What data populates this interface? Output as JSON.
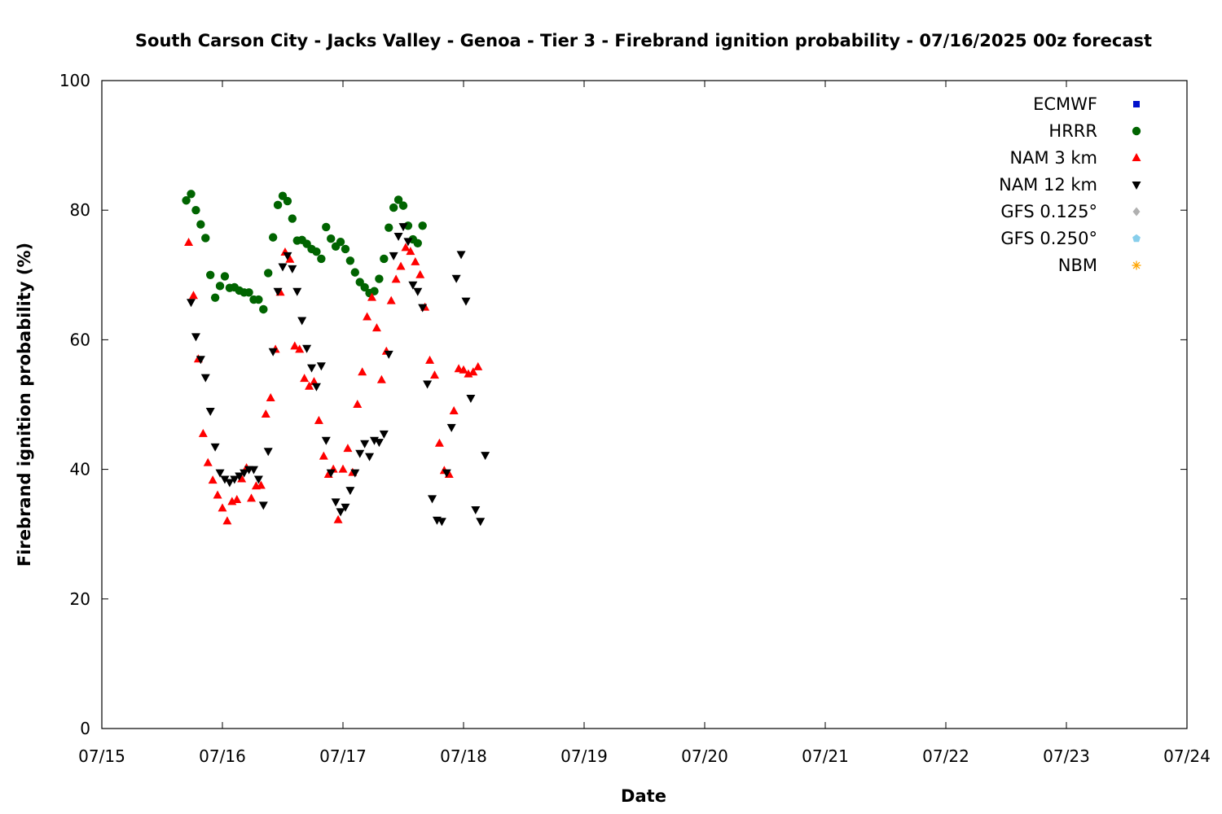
{
  "colors": {
    "ecmwf": "#0011cc",
    "hrrr": "#006400",
    "nam3": "#ff0000",
    "nam12": "#000000",
    "gfs0125": "#b0b0b0",
    "gfs0250": "#87ceeb",
    "nbm": "#ffa500"
  },
  "chart_data": {
    "type": "scatter",
    "title": "South Carson City - Jacks Valley - Genoa - Tier 3 - Firebrand ignition probability - 07/16/2025 00z forecast",
    "xlabel": "Date",
    "ylabel": "Firebrand ignition probability (%)",
    "xlim": [
      "07/15",
      "07/24"
    ],
    "ylim": [
      0,
      100
    ],
    "x_ticks": [
      "07/15",
      "07/16",
      "07/17",
      "07/18",
      "07/19",
      "07/20",
      "07/21",
      "07/22",
      "07/23",
      "07/24"
    ],
    "y_ticks": [
      0,
      20,
      40,
      60,
      80,
      100
    ],
    "grid": false,
    "legend_position": "top-right",
    "x_unit_note": "x values are days after 07/15 00z",
    "series": [
      {
        "name": "ECMWF",
        "marker": "square",
        "color": "#0011cc",
        "points": []
      },
      {
        "name": "HRRR",
        "marker": "circle",
        "color": "#006400",
        "points": [
          [
            0.7,
            81.5
          ],
          [
            0.74,
            82.5
          ],
          [
            0.78,
            80
          ],
          [
            0.82,
            77.8
          ],
          [
            0.86,
            75.7
          ],
          [
            0.9,
            70
          ],
          [
            0.94,
            66.5
          ],
          [
            0.98,
            68.3
          ],
          [
            1.02,
            69.8
          ],
          [
            1.06,
            68
          ],
          [
            1.1,
            68.1
          ],
          [
            1.14,
            67.6
          ],
          [
            1.18,
            67.3
          ],
          [
            1.22,
            67.3
          ],
          [
            1.26,
            66.2
          ],
          [
            1.3,
            66.2
          ],
          [
            1.34,
            64.7
          ],
          [
            1.38,
            70.3
          ],
          [
            1.42,
            75.8
          ],
          [
            1.46,
            80.8
          ],
          [
            1.5,
            82.2
          ],
          [
            1.54,
            81.4
          ],
          [
            1.58,
            78.7
          ],
          [
            1.62,
            75.3
          ],
          [
            1.66,
            75.4
          ],
          [
            1.7,
            74.8
          ],
          [
            1.74,
            74
          ],
          [
            1.78,
            73.6
          ],
          [
            1.82,
            72.5
          ],
          [
            1.86,
            77.4
          ],
          [
            1.9,
            75.6
          ],
          [
            1.94,
            74.4
          ],
          [
            1.98,
            75.1
          ],
          [
            2.02,
            74
          ],
          [
            2.06,
            72.2
          ],
          [
            2.1,
            70.4
          ],
          [
            2.14,
            68.9
          ],
          [
            2.18,
            68.1
          ],
          [
            2.22,
            67.2
          ],
          [
            2.26,
            67.5
          ],
          [
            2.3,
            69.4
          ],
          [
            2.34,
            72.5
          ],
          [
            2.38,
            77.3
          ],
          [
            2.42,
            80.4
          ],
          [
            2.46,
            81.6
          ],
          [
            2.5,
            80.7
          ],
          [
            2.54,
            77.6
          ],
          [
            2.58,
            75.5
          ],
          [
            2.62,
            74.9
          ],
          [
            2.66,
            77.6
          ]
        ]
      },
      {
        "name": "NAM 3 km",
        "marker": "triangle-up",
        "color": "#ff0000",
        "points": [
          [
            0.72,
            75
          ],
          [
            0.76,
            66.8
          ],
          [
            0.8,
            57
          ],
          [
            0.84,
            45.5
          ],
          [
            0.88,
            41
          ],
          [
            0.92,
            38.3
          ],
          [
            0.96,
            36
          ],
          [
            1.0,
            34
          ],
          [
            1.04,
            32
          ],
          [
            1.08,
            35
          ],
          [
            1.12,
            35.3
          ],
          [
            1.16,
            38.5
          ],
          [
            1.2,
            40.2
          ],
          [
            1.24,
            35.5
          ],
          [
            1.28,
            37.4
          ],
          [
            1.32,
            37.5
          ],
          [
            1.36,
            48.5
          ],
          [
            1.4,
            51
          ],
          [
            1.44,
            58.5
          ],
          [
            1.48,
            67.3
          ],
          [
            1.52,
            73.5
          ],
          [
            1.56,
            72.4
          ],
          [
            1.6,
            59
          ],
          [
            1.64,
            58.5
          ],
          [
            1.68,
            54
          ],
          [
            1.72,
            52.8
          ],
          [
            1.76,
            53.5
          ],
          [
            1.8,
            47.5
          ],
          [
            1.84,
            42
          ],
          [
            1.88,
            39.2
          ],
          [
            1.92,
            40
          ],
          [
            1.96,
            32.2
          ],
          [
            2.0,
            40
          ],
          [
            2.04,
            43.2
          ],
          [
            2.08,
            39.5
          ],
          [
            2.12,
            50
          ],
          [
            2.16,
            55
          ],
          [
            2.2,
            63.5
          ],
          [
            2.24,
            66.5
          ],
          [
            2.28,
            61.8
          ],
          [
            2.32,
            53.8
          ],
          [
            2.36,
            58.2
          ],
          [
            2.4,
            66
          ],
          [
            2.44,
            69.3
          ],
          [
            2.48,
            71.3
          ],
          [
            2.52,
            74.2
          ],
          [
            2.56,
            73.6
          ],
          [
            2.6,
            72
          ],
          [
            2.64,
            70
          ],
          [
            2.68,
            65
          ],
          [
            2.72,
            56.8
          ],
          [
            2.76,
            54.5
          ],
          [
            2.8,
            44
          ],
          [
            2.84,
            39.8
          ],
          [
            2.88,
            39.2
          ],
          [
            2.92,
            49
          ],
          [
            2.96,
            55.5
          ],
          [
            3.0,
            55.3
          ],
          [
            3.04,
            54.7
          ],
          [
            3.08,
            55
          ],
          [
            3.12,
            55.8
          ]
        ]
      },
      {
        "name": "NAM 12 km",
        "marker": "triangle-down",
        "color": "#000000",
        "points": [
          [
            0.74,
            65.8
          ],
          [
            0.78,
            60.5
          ],
          [
            0.82,
            57
          ],
          [
            0.86,
            54.2
          ],
          [
            0.9,
            49
          ],
          [
            0.94,
            43.5
          ],
          [
            0.98,
            39.5
          ],
          [
            1.02,
            38.5
          ],
          [
            1.06,
            38
          ],
          [
            1.1,
            38.5
          ],
          [
            1.14,
            39
          ],
          [
            1.18,
            39.5
          ],
          [
            1.22,
            40
          ],
          [
            1.26,
            40
          ],
          [
            1.3,
            38.5
          ],
          [
            1.34,
            34.5
          ],
          [
            1.38,
            42.8
          ],
          [
            1.42,
            58.2
          ],
          [
            1.46,
            67.5
          ],
          [
            1.5,
            71.3
          ],
          [
            1.54,
            73
          ],
          [
            1.58,
            71
          ],
          [
            1.62,
            67.5
          ],
          [
            1.66,
            63
          ],
          [
            1.7,
            58.7
          ],
          [
            1.74,
            55.7
          ],
          [
            1.78,
            52.8
          ],
          [
            1.82,
            56
          ],
          [
            1.86,
            44.5
          ],
          [
            1.9,
            39.5
          ],
          [
            1.94,
            35
          ],
          [
            1.98,
            33.5
          ],
          [
            2.02,
            34.2
          ],
          [
            2.06,
            36.8
          ],
          [
            2.1,
            39.5
          ],
          [
            2.14,
            42.5
          ],
          [
            2.18,
            44
          ],
          [
            2.22,
            42
          ],
          [
            2.26,
            44.5
          ],
          [
            2.3,
            44.2
          ],
          [
            2.34,
            45.5
          ],
          [
            2.38,
            57.8
          ],
          [
            2.42,
            73
          ],
          [
            2.46,
            76
          ],
          [
            2.5,
            77.5
          ],
          [
            2.54,
            75.2
          ],
          [
            2.58,
            68.5
          ],
          [
            2.62,
            67.5
          ],
          [
            2.66,
            65
          ],
          [
            2.7,
            53.2
          ],
          [
            2.74,
            35.5
          ],
          [
            2.78,
            32.2
          ],
          [
            2.82,
            32
          ],
          [
            2.86,
            39.5
          ],
          [
            2.9,
            46.5
          ],
          [
            2.94,
            69.5
          ],
          [
            2.98,
            73.2
          ],
          [
            3.02,
            66
          ],
          [
            3.06,
            51
          ],
          [
            3.1,
            33.8
          ],
          [
            3.14,
            32
          ],
          [
            3.18,
            42.2
          ]
        ]
      },
      {
        "name": "GFS 0.125°",
        "marker": "diamond",
        "color": "#b0b0b0",
        "points": []
      },
      {
        "name": "GFS 0.250°",
        "marker": "pentagon",
        "color": "#87ceeb",
        "points": []
      },
      {
        "name": "NBM",
        "marker": "asterisk",
        "color": "#ffa500",
        "points": []
      }
    ]
  }
}
